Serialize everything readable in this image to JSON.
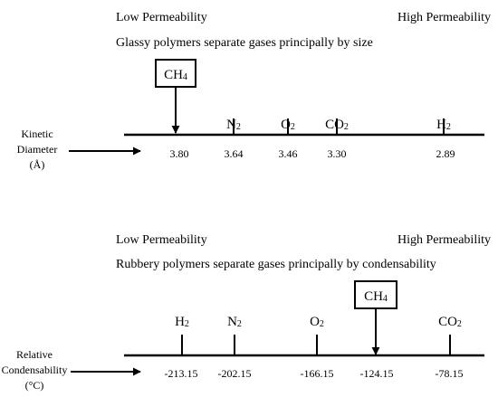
{
  "top_panel": {
    "low_label": "Low Permeability",
    "high_label": "High Permeability",
    "subtitle": "Glassy polymers separate gases principally by size",
    "axis_label_lines": [
      "Kinetic",
      "Diameter",
      "(Å)"
    ],
    "highlighted_gas": {
      "base": "CH",
      "sub": "4"
    },
    "gases": [
      {
        "base": "CH",
        "sub": "4",
        "value": "3.80",
        "highlighted": true
      },
      {
        "base": "N",
        "sub": "2",
        "value": "3.64",
        "highlighted": false
      },
      {
        "base": "O",
        "sub": "2",
        "value": "3.46",
        "highlighted": false
      },
      {
        "base": "CO",
        "sub": "2",
        "value": "3.30",
        "highlighted": false
      },
      {
        "base": "H",
        "sub": "2",
        "value": "2.89",
        "highlighted": false
      }
    ]
  },
  "bottom_panel": {
    "low_label": "Low Permeability",
    "high_label": "High Permeability",
    "subtitle": "Rubbery polymers separate gases principally by condensability",
    "axis_label_lines": [
      "Relative",
      "Condensability",
      "(°C)"
    ],
    "highlighted_gas": {
      "base": "CH",
      "sub": "4"
    },
    "gases": [
      {
        "base": "H",
        "sub": "2",
        "value": "-213.15",
        "highlighted": false
      },
      {
        "base": "N",
        "sub": "2",
        "value": "-202.15",
        "highlighted": false
      },
      {
        "base": "O",
        "sub": "2",
        "value": "-166.15",
        "highlighted": false
      },
      {
        "base": "CH",
        "sub": "4",
        "value": "-124.15",
        "highlighted": true
      },
      {
        "base": "CO",
        "sub": "2",
        "value": "-78.15",
        "highlighted": false
      }
    ]
  }
}
